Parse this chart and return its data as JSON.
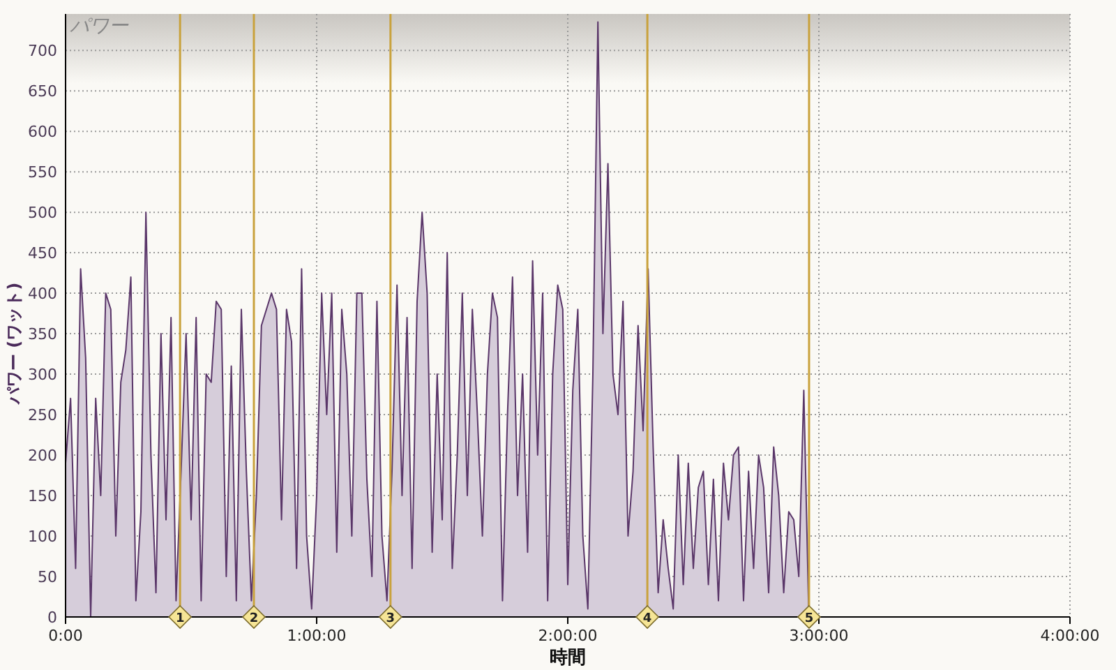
{
  "chart_data": {
    "type": "area",
    "title": "パワー",
    "xlabel": "時間",
    "ylabel": "パワー (ワット)",
    "xlim": [
      0,
      4
    ],
    "ylim": [
      0,
      745
    ],
    "xticks": [
      {
        "value": 0,
        "label": "0:00"
      },
      {
        "value": 1,
        "label": "1:00:00"
      },
      {
        "value": 2,
        "label": "2:00:00"
      },
      {
        "value": 3,
        "label": "3:00:00"
      },
      {
        "value": 4,
        "label": "4:00:00"
      }
    ],
    "yticks": [
      0,
      50,
      100,
      150,
      200,
      250,
      300,
      350,
      400,
      450,
      500,
      550,
      600,
      650,
      700
    ],
    "grid": true,
    "ref_lines": [
      {
        "axis": "x",
        "value": 0.456,
        "color": "#c9a23c"
      },
      {
        "axis": "x",
        "value": 0.75,
        "color": "#c9a23c"
      },
      {
        "axis": "x",
        "value": 1.294,
        "color": "#c9a23c"
      },
      {
        "axis": "x",
        "value": 2.317,
        "color": "#c9a23c"
      },
      {
        "axis": "x",
        "value": 2.961,
        "color": "#c9a23c"
      }
    ],
    "annotations": [
      {
        "text": "1",
        "x": 0.456,
        "y": 0
      },
      {
        "text": "2",
        "x": 0.75,
        "y": 0
      },
      {
        "text": "3",
        "x": 1.294,
        "y": 0
      },
      {
        "text": "4",
        "x": 2.317,
        "y": 0
      },
      {
        "text": "5",
        "x": 2.961,
        "y": 0
      }
    ],
    "series": [
      {
        "color": "#5a3669",
        "x": [
          0,
          0.02,
          0.04,
          0.06,
          0.08,
          0.1,
          0.12,
          0.14,
          0.16,
          0.18,
          0.2,
          0.22,
          0.24,
          0.26,
          0.28,
          0.3,
          0.32,
          0.34,
          0.36,
          0.38,
          0.4,
          0.42,
          0.44,
          0.46,
          0.48,
          0.5,
          0.52,
          0.54,
          0.56,
          0.58,
          0.6,
          0.62,
          0.64,
          0.66,
          0.68,
          0.7,
          0.72,
          0.74,
          0.76,
          0.78,
          0.8,
          0.82,
          0.84,
          0.86,
          0.88,
          0.9,
          0.92,
          0.94,
          0.96,
          0.98,
          1,
          1.02,
          1.04,
          1.06,
          1.08,
          1.1,
          1.12,
          1.14,
          1.16,
          1.18,
          1.2,
          1.22,
          1.24,
          1.26,
          1.28,
          1.3,
          1.32,
          1.34,
          1.36,
          1.38,
          1.4,
          1.42,
          1.44,
          1.46,
          1.48,
          1.5,
          1.52,
          1.54,
          1.56,
          1.58,
          1.6,
          1.62,
          1.64,
          1.66,
          1.68,
          1.7,
          1.72,
          1.74,
          1.76,
          1.78,
          1.8,
          1.82,
          1.84,
          1.86,
          1.88,
          1.9,
          1.92,
          1.94,
          1.96,
          1.98,
          2,
          2.02,
          2.04,
          2.06,
          2.08,
          2.1,
          2.12,
          2.14,
          2.16,
          2.18,
          2.2,
          2.22,
          2.24,
          2.26,
          2.28,
          2.3,
          2.32,
          2.34,
          2.36,
          2.38,
          2.4,
          2.42,
          2.44,
          2.46,
          2.48,
          2.5,
          2.52,
          2.54,
          2.56,
          2.58,
          2.6,
          2.62,
          2.64,
          2.66,
          2.68,
          2.7,
          2.72,
          2.74,
          2.76,
          2.78,
          2.8,
          2.82,
          2.84,
          2.86,
          2.88,
          2.9,
          2.92,
          2.94,
          2.96
        ],
        "values": [
          190,
          270,
          60,
          430,
          320,
          0,
          270,
          150,
          400,
          380,
          100,
          290,
          330,
          420,
          20,
          130,
          500,
          200,
          30,
          350,
          120,
          370,
          20,
          180,
          350,
          120,
          370,
          20,
          300,
          290,
          390,
          380,
          50,
          310,
          20,
          380,
          180,
          20,
          150,
          360,
          380,
          400,
          380,
          120,
          380,
          340,
          60,
          430,
          100,
          10,
          150,
          400,
          250,
          400,
          80,
          380,
          300,
          100,
          400,
          400,
          170,
          50,
          390,
          100,
          20,
          180,
          410,
          150,
          370,
          60,
          390,
          500,
          400,
          80,
          300,
          120,
          450,
          60,
          200,
          400,
          150,
          380,
          250,
          100,
          300,
          400,
          370,
          20,
          250,
          420,
          150,
          300,
          80,
          440,
          200,
          400,
          20,
          300,
          410,
          380,
          40,
          280,
          380,
          100,
          10,
          300,
          735,
          350,
          560,
          300,
          250,
          390,
          100,
          180,
          360,
          230,
          430,
          210,
          30,
          120,
          60,
          10,
          200,
          40,
          190,
          60,
          160,
          180,
          40,
          170,
          20,
          190,
          120,
          200,
          210,
          20,
          180,
          60,
          200,
          160,
          30,
          210,
          150,
          30,
          130,
          120,
          50,
          280,
          0
        ]
      }
    ]
  }
}
